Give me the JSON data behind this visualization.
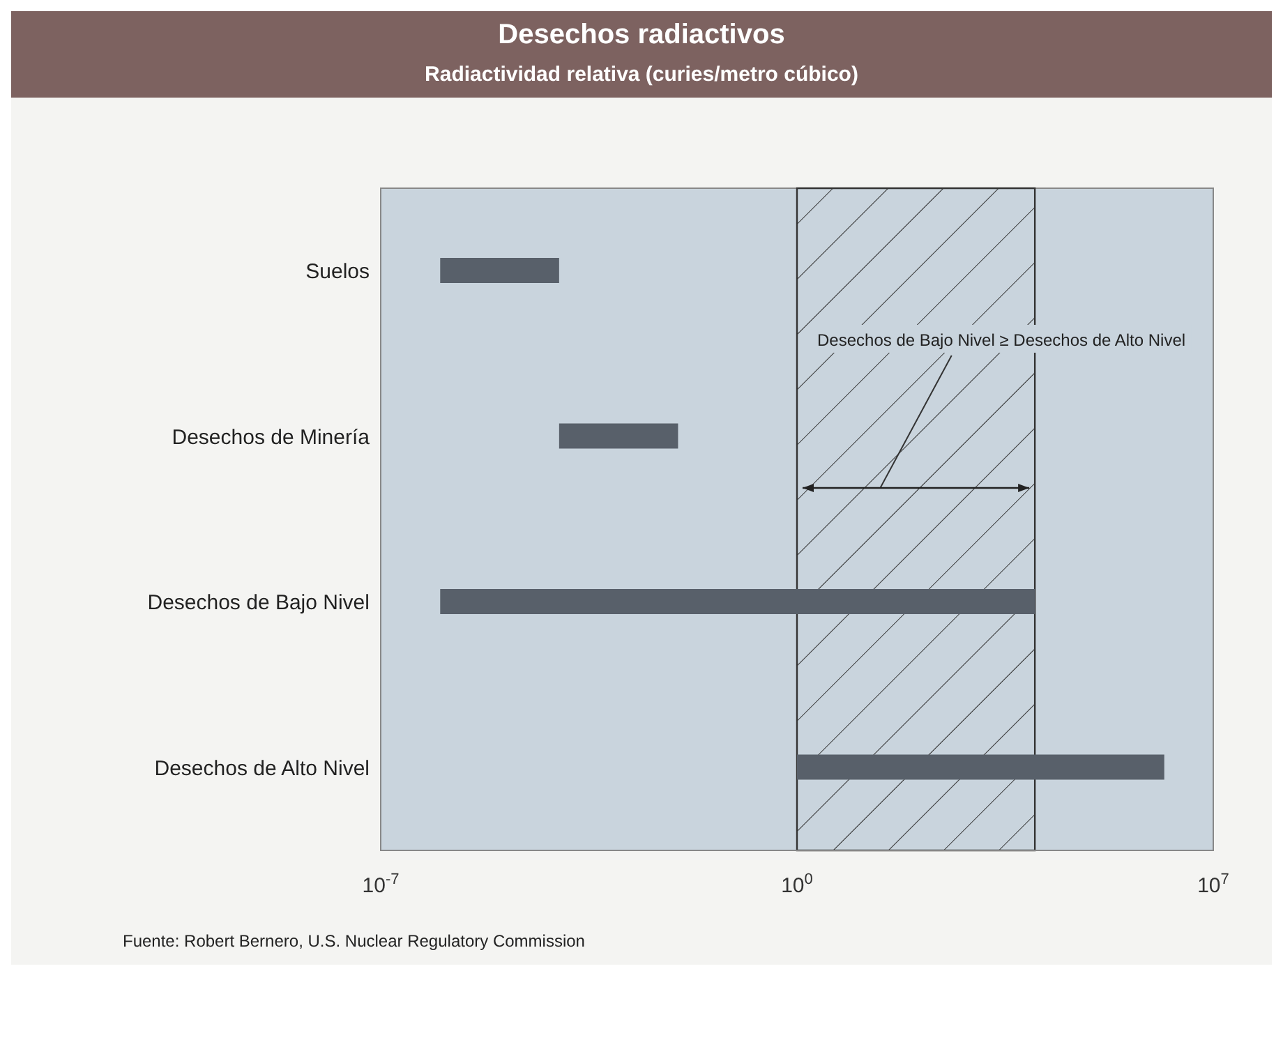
{
  "chart_data": {
    "type": "bar",
    "orientation": "horizontal",
    "title": "Desechos radiactivos",
    "subtitle": "Radiactividad relativa (curies/metro cúbico)",
    "categories": [
      "Suelos",
      "Desechos de Minería",
      "Desechos de Bajo Nivel",
      "Desechos de Alto Nivel"
    ],
    "base": [
      1e-06,
      0.0001,
      1e-06,
      1
    ],
    "values": [
      9.9e-05,
      0.0099,
      9999.999999,
      1499999
    ],
    "color": "#58606a",
    "log": "x",
    "xlim": [
      1e-07,
      10000000.0
    ],
    "xticks": [
      {
        "value": 1e-07,
        "label": "10$^{-7}$"
      },
      {
        "value": 1,
        "label": "10$^{0}$"
      },
      {
        "value": 10000000.0,
        "label": "10$^{7}$"
      }
    ],
    "bands": [
      {
        "axis": "x",
        "from": 1,
        "to": 10000,
        "label": "Desechos de Bajo Nivel ≥ Desechos de Alto Nivel"
      }
    ],
    "annotations": [
      "Fuente: Robert Bernero, U.S. Nuclear Regulatory Commission"
    ]
  }
}
